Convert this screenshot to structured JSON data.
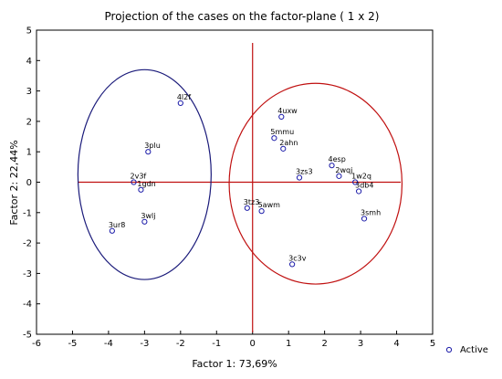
{
  "chart_data": {
    "type": "scatter",
    "title": "Projection of the cases on the factor-plane (  1 x   2)",
    "xlabel": "Factor 1: 73,69%",
    "ylabel": "Factor 2: 22,44%",
    "xlim": [
      -6,
      5
    ],
    "ylim": [
      -5,
      5
    ],
    "x_ticks": [
      "-6",
      "-5",
      "-4",
      "-3",
      "-2",
      "-1",
      "0",
      "1",
      "2",
      "3",
      "4",
      "5"
    ],
    "y_ticks": [
      "-5",
      "-4",
      "-3",
      "-2",
      "-1",
      "0",
      "1",
      "2",
      "3",
      "4",
      "5"
    ],
    "point_color": "#1a1aa8",
    "grid": false,
    "legend": {
      "placement": "bottom-right",
      "label": "Active"
    },
    "points": [
      {
        "label": "4l2f",
        "x": -2.0,
        "y": 2.6
      },
      {
        "label": "3plu",
        "x": -2.9,
        "y": 1.0
      },
      {
        "label": "2v3f",
        "x": -3.3,
        "y": 0.0
      },
      {
        "label": "1gdn",
        "x": -3.1,
        "y": -0.25
      },
      {
        "label": "3wlj",
        "x": -3.0,
        "y": -1.3
      },
      {
        "label": "3ur8",
        "x": -3.9,
        "y": -1.6
      },
      {
        "label": "4uxw",
        "x": 0.8,
        "y": 2.15
      },
      {
        "label": "5mmu",
        "x": 0.6,
        "y": 1.45
      },
      {
        "label": "2ahn",
        "x": 0.85,
        "y": 1.1
      },
      {
        "label": "3zs3",
        "x": 1.3,
        "y": 0.15
      },
      {
        "label": "4esp",
        "x": 2.2,
        "y": 0.55
      },
      {
        "label": "2wqj",
        "x": 2.4,
        "y": 0.2
      },
      {
        "label": "1w2q",
        "x": 2.85,
        "y": 0.0
      },
      {
        "label": "3db4",
        "x": 2.95,
        "y": -0.3
      },
      {
        "label": "3smh",
        "x": 3.1,
        "y": -1.2
      },
      {
        "label": "3tz3",
        "x": -0.15,
        "y": -0.85
      },
      {
        "label": "5awm",
        "x": 0.25,
        "y": -0.95
      },
      {
        "label": "3c3v",
        "x": 1.1,
        "y": -2.7
      }
    ],
    "clusters": [
      {
        "cx": -3.0,
        "cy": 0.25,
        "rx": 1.85,
        "ry": 3.45,
        "color": "#1a1a7a"
      },
      {
        "cx": 1.75,
        "cy": -0.05,
        "rx": 2.4,
        "ry": 3.3,
        "color": "#c01010"
      }
    ],
    "crosshair_color": "#c01010"
  }
}
